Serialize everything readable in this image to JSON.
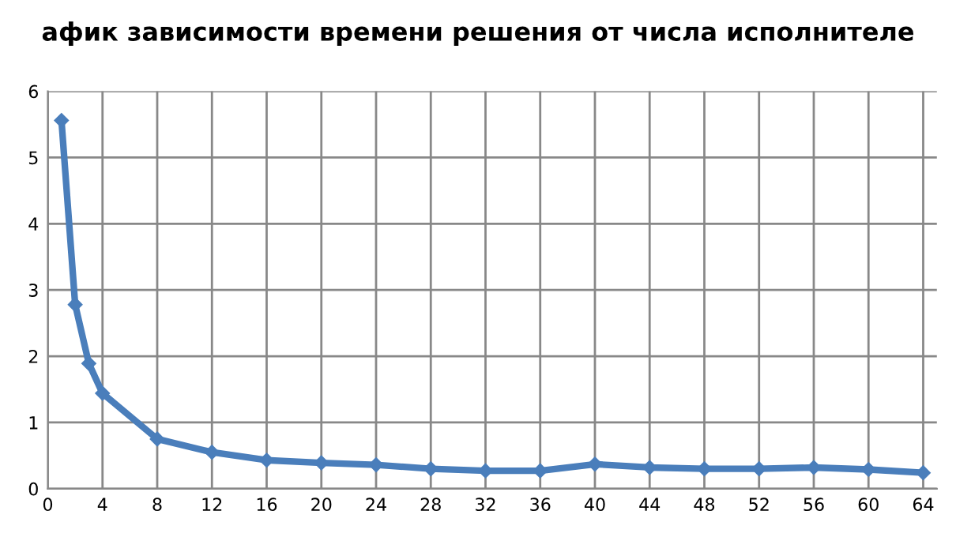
{
  "chart_data": {
    "type": "line",
    "title": "афик зависимости времени решения от числа исполнителе",
    "x": [
      1,
      2,
      3,
      4,
      8,
      12,
      16,
      20,
      24,
      28,
      32,
      36,
      40,
      44,
      48,
      52,
      56,
      60,
      64
    ],
    "series": [
      {
        "color": "#4a7ebb",
        "values": [
          5.56,
          2.78,
          1.89,
          1.44,
          0.75,
          0.55,
          0.43,
          0.39,
          0.36,
          0.3,
          0.27,
          0.27,
          0.37,
          0.32,
          0.3,
          0.3,
          0.32,
          0.29,
          0.24
        ]
      }
    ],
    "xlim": [
      0,
      65
    ],
    "xticks": [
      0,
      4,
      8,
      12,
      16,
      20,
      24,
      28,
      32,
      36,
      40,
      44,
      48,
      52,
      56,
      60,
      64
    ],
    "ylim": [
      0,
      6
    ],
    "yticks": [
      0,
      1,
      2,
      3,
      4,
      5,
      6
    ],
    "grid": true,
    "marker": "diamond",
    "line_style": "solid"
  }
}
